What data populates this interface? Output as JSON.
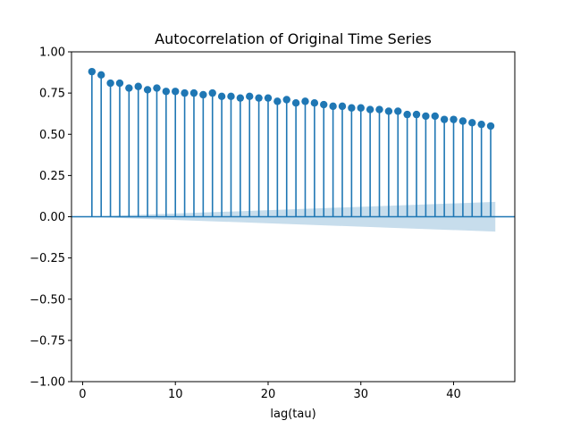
{
  "chart_data": {
    "type": "scatter",
    "subtype": "stem-acf",
    "title": "Autocorrelation of Original Time Series",
    "xlabel": "lag(tau)",
    "ylabel": "",
    "xlim": [
      -1.2,
      46.6
    ],
    "ylim": [
      -1.0,
      1.0
    ],
    "x_ticks": [
      0,
      10,
      20,
      30,
      40
    ],
    "y_ticks": [
      -1.0,
      -0.75,
      -0.5,
      -0.25,
      0.0,
      0.25,
      0.5,
      0.75,
      1.0
    ],
    "x_tick_labels": [
      "0",
      "10",
      "20",
      "30",
      "40"
    ],
    "y_tick_labels": [
      "−1.00",
      "−0.75",
      "−0.50",
      "−0.25",
      "0.00",
      "0.25",
      "0.50",
      "0.75",
      "1.00"
    ],
    "grid": false,
    "series": [
      {
        "lags": [
          1,
          2,
          3,
          4,
          5,
          6,
          7,
          8,
          9,
          10,
          11,
          12,
          13,
          14,
          15,
          16,
          17,
          18,
          19,
          20,
          21,
          22,
          23,
          24,
          25,
          26,
          27,
          28,
          29,
          30,
          31,
          32,
          33,
          34,
          35,
          36,
          37,
          38,
          39,
          40,
          41,
          42,
          43,
          44
        ],
        "values": [
          0.88,
          0.86,
          0.81,
          0.81,
          0.78,
          0.79,
          0.77,
          0.78,
          0.76,
          0.76,
          0.75,
          0.75,
          0.74,
          0.75,
          0.73,
          0.73,
          0.72,
          0.73,
          0.72,
          0.72,
          0.7,
          0.71,
          0.69,
          0.7,
          0.69,
          0.68,
          0.67,
          0.67,
          0.66,
          0.66,
          0.65,
          0.65,
          0.64,
          0.64,
          0.62,
          0.62,
          0.61,
          0.61,
          0.59,
          0.59,
          0.58,
          0.57,
          0.56,
          0.55
        ],
        "color": "#1f77b4"
      }
    ],
    "confidence_band": {
      "x_start": 0.5,
      "x_end": 44.5,
      "upper_start": 0.0,
      "upper_end": 0.09,
      "lower_start": 0.0,
      "lower_end": -0.09,
      "color": "#1f77b4",
      "opacity": 0.25
    }
  }
}
